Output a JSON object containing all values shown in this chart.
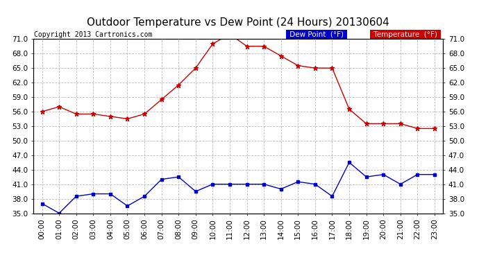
{
  "title": "Outdoor Temperature vs Dew Point (24 Hours) 20130604",
  "copyright": "Copyright 2013 Cartronics.com",
  "background_color": "#ffffff",
  "plot_bg_color": "#ffffff",
  "grid_color": "#bbbbbb",
  "x_labels": [
    "00:00",
    "01:00",
    "02:00",
    "03:00",
    "04:00",
    "05:00",
    "06:00",
    "07:00",
    "08:00",
    "09:00",
    "10:00",
    "11:00",
    "12:00",
    "13:00",
    "14:00",
    "15:00",
    "16:00",
    "17:00",
    "18:00",
    "19:00",
    "20:00",
    "21:00",
    "22:00",
    "23:00"
  ],
  "temperature": [
    56.0,
    57.0,
    55.5,
    55.5,
    55.0,
    54.5,
    55.5,
    58.5,
    61.5,
    65.0,
    70.0,
    72.0,
    69.5,
    69.5,
    67.5,
    65.5,
    65.0,
    65.0,
    56.5,
    53.5,
    53.5,
    53.5,
    52.5,
    52.5
  ],
  "dew_point": [
    37.0,
    35.0,
    38.5,
    39.0,
    39.0,
    36.5,
    38.5,
    42.0,
    42.5,
    39.5,
    41.0,
    41.0,
    41.0,
    41.0,
    40.0,
    41.5,
    41.0,
    38.5,
    45.5,
    42.5,
    43.0,
    41.0,
    43.0,
    43.0
  ],
  "temp_color": "#cc0000",
  "dew_color": "#0000cc",
  "ylim_min": 35.0,
  "ylim_max": 71.0,
  "yticks": [
    35.0,
    38.0,
    41.0,
    44.0,
    47.0,
    50.0,
    53.0,
    56.0,
    59.0,
    62.0,
    65.0,
    68.0,
    71.0
  ],
  "legend_dew_bg": "#0000cc",
  "legend_temp_bg": "#cc0000",
  "legend_text_color": "#ffffff",
  "title_fontsize": 11,
  "copyright_fontsize": 7,
  "tick_fontsize": 7.5,
  "legend_fontsize": 7.5
}
